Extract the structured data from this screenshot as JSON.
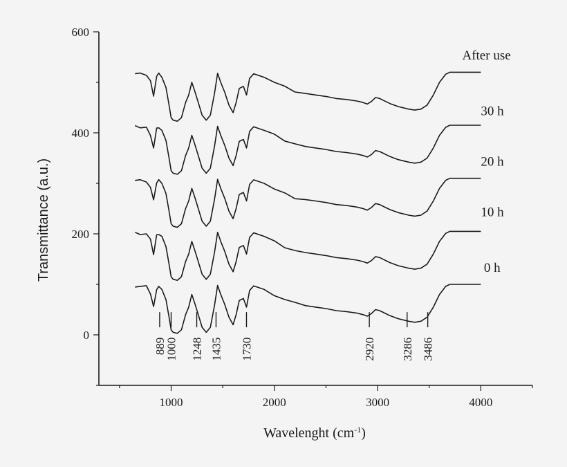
{
  "chart_data": {
    "type": "line",
    "xlabel": "Wavelenght (cm",
    "xlabel_sup": "-1",
    "xlabel_end": ")",
    "ylabel": "Transmittance (a.u.)",
    "xlim": [
      300,
      4500
    ],
    "ylim": [
      -100,
      600
    ],
    "x_ticks": [
      1000,
      2000,
      3000,
      4000
    ],
    "y_ticks": [
      0,
      200,
      400,
      600
    ],
    "x_tick_labels": [
      "1000",
      "2000",
      "3000",
      "4000"
    ],
    "y_tick_labels": [
      "0",
      "200",
      "400",
      "600"
    ],
    "grid": false,
    "peak_markers": [
      {
        "label": "889",
        "x": 889
      },
      {
        "label": "1000",
        "x": 1000
      },
      {
        "label": "1248",
        "x": 1248
      },
      {
        "label": "1435",
        "x": 1435
      },
      {
        "label": "1730",
        "x": 1730
      },
      {
        "label": "2920",
        "x": 2920
      },
      {
        "label": "3286",
        "x": 3286
      },
      {
        "label": "3486",
        "x": 3486
      }
    ],
    "series": [
      {
        "name": "0 h",
        "offset": 0,
        "label_x": 4030,
        "label_y": 125
      },
      {
        "name": "10 h",
        "offset": 105,
        "label_x": 4000,
        "label_y": 235
      },
      {
        "name": "20 h",
        "offset": 210,
        "label_x": 4000,
        "label_y": 335
      },
      {
        "name": "30 h",
        "offset": 315,
        "label_x": 4000,
        "label_y": 435
      },
      {
        "name": "After use",
        "offset": 420,
        "label_x": 3820,
        "label_y": 545
      }
    ],
    "base_profile": {
      "x": [
        650,
        700,
        760,
        800,
        830,
        860,
        880,
        910,
        950,
        980,
        1000,
        1020,
        1060,
        1100,
        1140,
        1170,
        1200,
        1230,
        1260,
        1300,
        1340,
        1380,
        1420,
        1450,
        1480,
        1520,
        1560,
        1600,
        1630,
        1660,
        1700,
        1730,
        1760,
        1800,
        1900,
        2000,
        2100,
        2200,
        2300,
        2400,
        2500,
        2600,
        2700,
        2800,
        2860,
        2900,
        2940,
        2980,
        3020,
        3060,
        3120,
        3200,
        3300,
        3360,
        3420,
        3480,
        3540,
        3600,
        3660,
        3700,
        3800,
        4000
      ],
      "y": [
        97,
        96,
        95,
        82,
        55,
        92,
        96,
        90,
        70,
        35,
        10,
        5,
        3,
        10,
        40,
        55,
        80,
        62,
        42,
        15,
        5,
        15,
        58,
        98,
        80,
        60,
        35,
        20,
        40,
        68,
        72,
        55,
        88,
        97,
        90,
        80,
        70,
        62,
        58,
        55,
        52,
        48,
        46,
        43,
        40,
        37,
        42,
        50,
        48,
        44,
        38,
        32,
        27,
        25,
        27,
        35,
        55,
        80,
        96,
        100,
        100,
        100
      ]
    }
  }
}
